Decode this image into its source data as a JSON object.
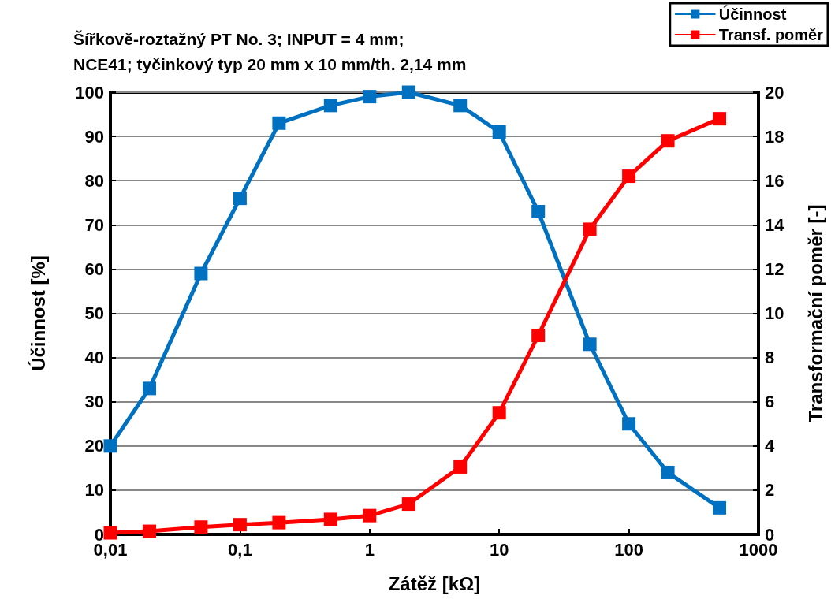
{
  "chart_data": {
    "type": "line",
    "title": "Šířkově-roztažný PT No. 3; INPUT = 4 mm;\nNCE41; tyčinkový typ 20 mm x 10 mm/th. 2,14 mm",
    "xlabel": "Zátěž [kΩ]",
    "ylabel": "Účinnost [%]",
    "y2label": "Transformační poměr [-]",
    "x": [
      0.01,
      0.02,
      0.05,
      0.1,
      0.2,
      0.5,
      1,
      2,
      5,
      10,
      20,
      50,
      100,
      200,
      500
    ],
    "series": [
      {
        "name": "Účinnost",
        "color": "#0070c0",
        "values": [
          20,
          33,
          59,
          76,
          93,
          97,
          99,
          100,
          97,
          91,
          73,
          43,
          25,
          14,
          6
        ]
      },
      {
        "name": "Transf. poměr",
        "color": "#ff0000",
        "axis": "y2",
        "values": [
          0.07,
          0.14,
          0.33,
          0.44,
          0.53,
          0.68,
          0.85,
          1.37,
          3.05,
          5.5,
          9.0,
          13.8,
          16.2,
          17.8,
          18.8
        ]
      }
    ],
    "log": "x",
    "xlim": [
      0.01,
      1000
    ],
    "xticks": [
      {
        "value": 0.01,
        "label": "0,01"
      },
      {
        "value": 0.1,
        "label": "0,1"
      },
      1,
      10,
      100,
      1000
    ],
    "ylim": [
      0,
      100
    ],
    "yticks": [
      0,
      10,
      20,
      30,
      40,
      50,
      60,
      70,
      80,
      90,
      100
    ],
    "y2lim": [
      0,
      20
    ],
    "y2ticks": [
      0,
      2,
      4,
      6,
      8,
      10,
      12,
      14,
      16,
      18,
      20
    ],
    "grid": "y",
    "legend": "top right",
    "marker": "square",
    "line_style": "solid"
  }
}
